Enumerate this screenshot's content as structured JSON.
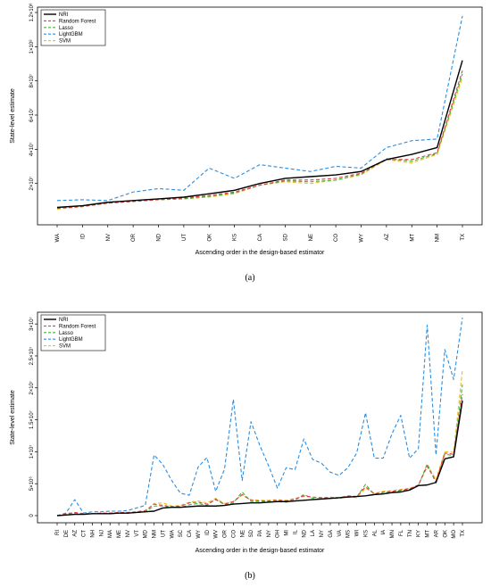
{
  "colors": {
    "NRI": "#000000",
    "Random Forest": "#e0404a",
    "Lasso": "#33bb33",
    "LightGBM": "#2a8ee0",
    "SVM": "#e8c020"
  },
  "chart_data": [
    {
      "type": "line",
      "caption": "(a)",
      "ylabel": "State-level estimate",
      "xlabel": "Ascending order in the design-based estimator",
      "categories": [
        "WA",
        "ID",
        "NV",
        "OR",
        "ND",
        "UT",
        "OK",
        "KS",
        "CA",
        "SD",
        "NE",
        "CO",
        "WY",
        "AZ",
        "MT",
        "NM",
        "TX"
      ],
      "ylim": [
        0,
        120000000
      ],
      "yticks": [
        {
          "value": 20000000,
          "label": "2×10⁷"
        },
        {
          "value": 40000000,
          "label": "4×10⁷"
        },
        {
          "value": 60000000,
          "label": "6×10⁷"
        },
        {
          "value": 80000000,
          "label": "8×10⁷"
        },
        {
          "value": 100000000,
          "label": "1×10⁸"
        },
        {
          "value": 120000000,
          "label": "1.2×10⁸"
        }
      ],
      "legend": {
        "position": "top-left",
        "entries": [
          "NRI",
          "Random Forest",
          "Lasso",
          "LightGBM",
          "SVM"
        ]
      },
      "series": [
        {
          "name": "NRI",
          "values": [
            6000000,
            7000000,
            9000000,
            10000000,
            11000000,
            12000000,
            14000000,
            16000000,
            20000000,
            23000000,
            24000000,
            25000000,
            27000000,
            34000000,
            37000000,
            41000000,
            92000000
          ]
        },
        {
          "name": "Random Forest",
          "values": [
            5500000,
            6500000,
            8500000,
            9500000,
            10500000,
            11500000,
            13000000,
            15000000,
            19000000,
            22000000,
            22000000,
            23000000,
            26000000,
            34000000,
            34000000,
            38000000,
            86000000
          ]
        },
        {
          "name": "Lasso",
          "values": [
            5500000,
            6500000,
            8500000,
            9500000,
            10500000,
            11000000,
            12500000,
            14500000,
            19000000,
            21500000,
            21000000,
            22000000,
            25500000,
            34500000,
            33000000,
            37500000,
            84000000
          ]
        },
        {
          "name": "LightGBM",
          "values": [
            10000000,
            10500000,
            10000000,
            15000000,
            17000000,
            16000000,
            29000000,
            23000000,
            31000000,
            29000000,
            27000000,
            30000000,
            29000000,
            41000000,
            45000000,
            46000000,
            118000000
          ]
        },
        {
          "name": "SVM",
          "values": [
            5000000,
            6500000,
            8500000,
            9500000,
            10500000,
            11000000,
            12000000,
            14000000,
            19000000,
            21000000,
            20000000,
            22000000,
            25000000,
            34000000,
            32000000,
            37000000,
            82000000
          ]
        }
      ]
    },
    {
      "type": "line",
      "caption": "(b)",
      "ylabel": "State-level estimate",
      "xlabel": "Ascending order in the design-based estimator",
      "categories": [
        "RI",
        "DE",
        "AZ",
        "CT",
        "NH",
        "NJ",
        "MA",
        "ME",
        "NV",
        "VT",
        "MD",
        "NM",
        "UT",
        "WA",
        "SC",
        "CA",
        "WY",
        "ID",
        "WV",
        "OR",
        "CO",
        "NE",
        "SD",
        "PA",
        "NY",
        "OH",
        "MI",
        "IL",
        "ND",
        "LA",
        "NY",
        "GA",
        "VA",
        "MS",
        "WI",
        "KS",
        "AL",
        "IA",
        "MN",
        "FL",
        "TN",
        "KY",
        "MT",
        "AR",
        "OK",
        "MO",
        "TX"
      ],
      "ylim": [
        0,
        31000000
      ],
      "yticks": [
        {
          "value": 0,
          "label": "0"
        },
        {
          "value": 5000000,
          "label": "5×10⁶"
        },
        {
          "value": 10000000,
          "label": "1×10⁷"
        },
        {
          "value": 15000000,
          "label": "1.5×10⁷"
        },
        {
          "value": 20000000,
          "label": "2×10⁷"
        },
        {
          "value": 25000000,
          "label": "2.5×10⁷"
        },
        {
          "value": 30000000,
          "label": "3×10⁷"
        }
      ],
      "legend": {
        "position": "top-left",
        "entries": [
          "NRI",
          "Random Forest",
          "Lasso",
          "LightGBM",
          "SVM"
        ]
      },
      "series": [
        {
          "name": "NRI",
          "values": [
            0,
            100000,
            200000,
            200000,
            300000,
            300000,
            300000,
            400000,
            400000,
            500000,
            600000,
            700000,
            1200000,
            1300000,
            1300000,
            1400000,
            1500000,
            1500000,
            1500000,
            1600000,
            1800000,
            1900000,
            2000000,
            2000000,
            2100000,
            2200000,
            2200000,
            2300000,
            2400000,
            2500000,
            2600000,
            2700000,
            2800000,
            2900000,
            3000000,
            3100000,
            3300000,
            3400000,
            3600000,
            3700000,
            4000000,
            4700000,
            4800000,
            5200000,
            8900000,
            9200000,
            18000000
          ]
        },
        {
          "name": "Random Forest",
          "values": [
            0,
            300000,
            500000,
            300000,
            300000,
            400000,
            400000,
            500000,
            500000,
            600000,
            800000,
            1800000,
            1600000,
            1400000,
            1500000,
            2000000,
            2100000,
            1800000,
            2500000,
            1800000,
            2200000,
            3300000,
            2400000,
            2300000,
            2300000,
            2400000,
            2300000,
            2600000,
            3100000,
            2900000,
            2800000,
            2800000,
            2800000,
            3100000,
            3000000,
            4500000,
            3400000,
            3700000,
            3800000,
            4000000,
            4200000,
            4800000,
            7700000,
            5400000,
            9800000,
            9600000,
            19000000
          ]
        },
        {
          "name": "Lasso",
          "values": [
            0,
            200000,
            400000,
            300000,
            300000,
            300000,
            400000,
            400000,
            400000,
            500000,
            600000,
            1500000,
            1500000,
            1300000,
            1300000,
            1700000,
            1900000,
            1600000,
            2600000,
            1700000,
            2000000,
            3700000,
            2200000,
            2200000,
            2200000,
            2200000,
            2100000,
            2400000,
            3300000,
            2700000,
            2600000,
            2700000,
            2700000,
            3000000,
            2900000,
            4900000,
            3300000,
            3500000,
            3700000,
            3900000,
            4100000,
            4700000,
            8100000,
            5100000,
            9600000,
            9400000,
            20500000
          ]
        },
        {
          "name": "LightGBM",
          "values": [
            0,
            400000,
            2500000,
            400000,
            600000,
            600000,
            700000,
            700000,
            800000,
            1200000,
            1600000,
            9500000,
            8000000,
            5500000,
            3500000,
            3200000,
            7600000,
            9100000,
            3800000,
            7300000,
            18200000,
            5500000,
            14700000,
            11000000,
            7800000,
            4300000,
            7500000,
            7200000,
            12000000,
            8800000,
            8200000,
            6800000,
            6300000,
            7500000,
            9800000,
            16100000,
            9000000,
            9000000,
            12800000,
            15700000,
            9000000,
            10500000,
            29800000,
            9500000,
            26000000,
            21300000,
            31000000
          ]
        },
        {
          "name": "SVM",
          "values": [
            0,
            200000,
            300000,
            300000,
            300000,
            300000,
            400000,
            400000,
            400000,
            500000,
            600000,
            1900000,
            2000000,
            1500000,
            1600000,
            2100000,
            2300000,
            2000000,
            2700000,
            1900000,
            2200000,
            3200000,
            2500000,
            2400000,
            2400000,
            2500000,
            2400000,
            2700000,
            3000000,
            2900000,
            2800000,
            2900000,
            2800000,
            3000000,
            2800000,
            4300000,
            3500000,
            3800000,
            3900000,
            4100000,
            4300000,
            4700000,
            7900000,
            5700000,
            10000000,
            9900000,
            22800000
          ]
        }
      ]
    }
  ]
}
